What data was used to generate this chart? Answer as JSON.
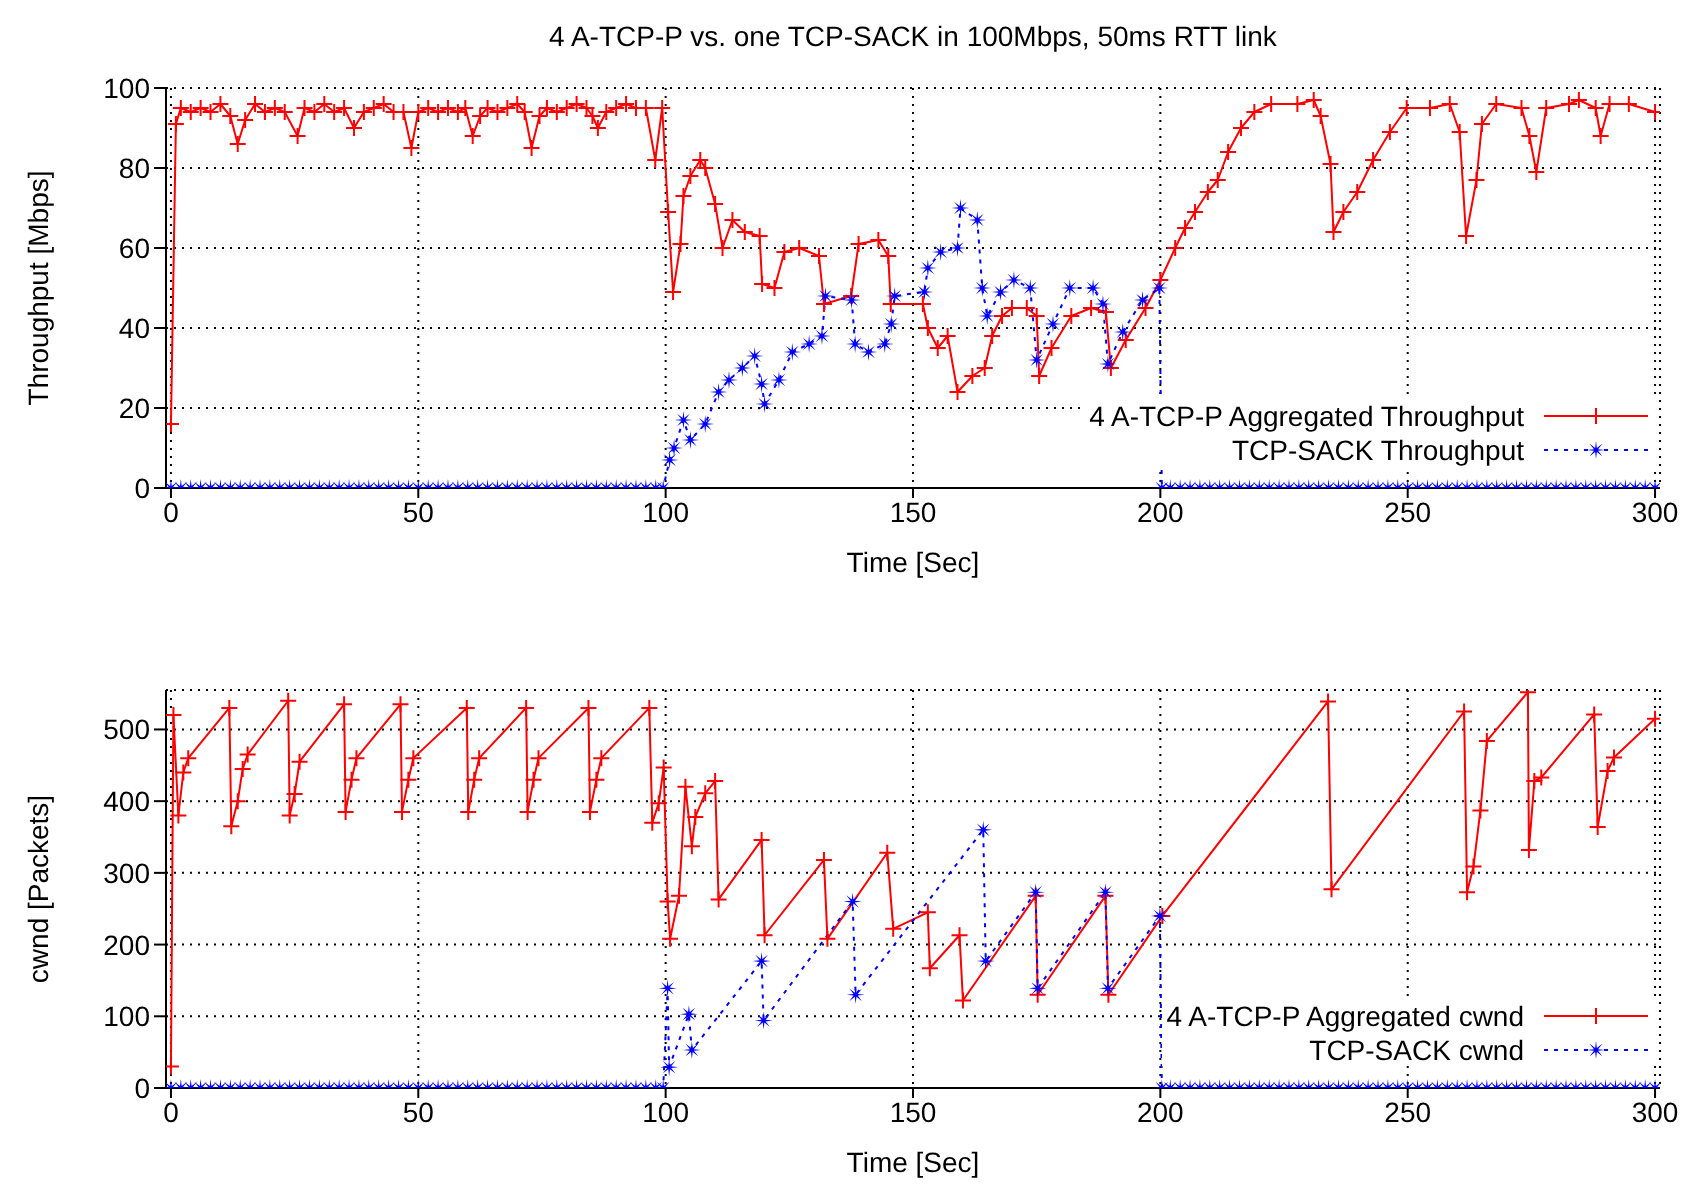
{
  "chart_data": [
    {
      "type": "line",
      "title": "4 A-TCP-P vs. one TCP-SACK in 100Mbps, 50ms RTT link",
      "xlabel": "Time [Sec]",
      "ylabel": "Throughput [Mbps]",
      "xlim": [
        -1,
        301
      ],
      "xticks": [
        0,
        50,
        100,
        150,
        200,
        250,
        300
      ],
      "ylim": [
        0,
        100
      ],
      "yticks": [
        0,
        20,
        40,
        60,
        80,
        100
      ],
      "grid": true,
      "legend": "bottom right",
      "series": [
        {
          "name": "4 A-TCP-P Aggregated Throughput",
          "color": "#ff0000",
          "marker": "cross",
          "line_style": "solid",
          "x": [
            0,
            1,
            2,
            4,
            6,
            8,
            10,
            12,
            13.5,
            15,
            17,
            19,
            21,
            23,
            25.6,
            27,
            29,
            31,
            33,
            35,
            37,
            39,
            41,
            43,
            45,
            47,
            48.6,
            50,
            52,
            54,
            56,
            58,
            59.5,
            61,
            62.5,
            64,
            66,
            68,
            70,
            71.5,
            72.9,
            74.5,
            76,
            78,
            80,
            82,
            84,
            85.2,
            86.3,
            88,
            90,
            92,
            94,
            96,
            97.9,
            99.3,
            100.5,
            101.5,
            103,
            103.6,
            105,
            107,
            108,
            110,
            111.5,
            113.5,
            116,
            119,
            119.5,
            122,
            124,
            127,
            131,
            132,
            137.5,
            139,
            143,
            145,
            145.5,
            152,
            153,
            155,
            157,
            159,
            162,
            164.5,
            166,
            168,
            170,
            173,
            175,
            175.5,
            178,
            182,
            186,
            189,
            190,
            193,
            197,
            200,
            203,
            205,
            207,
            209.6,
            211.6,
            213.7,
            216.3,
            219,
            222.4,
            227.7,
            231,
            232.4,
            234.4,
            235,
            237,
            239.8,
            243,
            246.4,
            249.8,
            254.5,
            258.5,
            260.5,
            261.8,
            263.9,
            265,
            267.9,
            273,
            274.6,
            276,
            278,
            282.6,
            284.6,
            288,
            289,
            290.8,
            294.7,
            300
          ],
          "values": [
            16,
            91,
            95,
            94,
            95,
            94,
            96,
            93,
            86,
            92,
            96,
            94,
            95,
            94,
            88,
            95,
            94,
            96,
            94,
            95,
            90,
            94,
            95,
            96,
            94,
            94,
            85,
            94,
            95,
            94,
            95,
            94,
            95,
            88,
            93,
            95,
            94,
            95,
            96,
            94,
            85,
            93,
            95,
            94,
            95,
            96,
            95,
            93,
            90,
            94,
            95,
            96,
            95,
            95,
            82,
            95,
            69,
            49,
            61,
            73,
            78,
            82,
            80,
            71,
            60,
            67,
            64,
            63,
            51,
            50,
            59,
            60,
            58,
            46,
            48,
            61,
            62,
            58,
            46,
            46,
            40,
            35,
            38,
            24,
            28,
            30,
            38,
            43,
            45,
            45,
            43,
            28,
            35,
            43,
            45,
            44,
            30,
            37,
            45,
            52,
            60,
            65,
            69,
            74,
            77,
            84,
            90,
            94,
            96,
            96,
            97,
            93,
            81,
            64,
            69,
            74,
            82,
            89,
            95,
            95,
            96,
            89,
            63,
            77,
            91,
            96,
            95,
            88,
            79,
            95,
            96,
            97,
            95,
            88,
            96,
            96,
            94
          ]
        },
        {
          "name": "TCP-SACK Throughput",
          "color": "#0000ff",
          "marker": "star",
          "line_style": "dotted",
          "x": [
            0,
            2,
            4,
            6,
            8,
            10,
            12,
            14,
            16,
            18,
            20,
            22,
            24,
            26,
            28,
            30,
            32,
            34,
            36,
            38,
            40,
            42,
            44,
            46,
            48,
            50,
            52,
            54,
            56,
            58,
            60,
            62,
            64,
            66,
            68,
            70,
            72,
            74,
            76,
            78,
            80,
            82,
            84,
            86,
            88,
            90,
            92,
            94,
            96,
            98,
            99.5,
            100.8,
            101.7,
            103.6,
            105,
            108,
            110.7,
            112.8,
            115.5,
            118,
            119.4,
            120,
            122.9,
            125.6,
            129,
            131.6,
            132.3,
            137.6,
            138.3,
            141,
            144.3,
            145.6,
            146.3,
            152.3,
            153,
            155.6,
            159,
            159.6,
            163,
            164,
            165,
            167.7,
            170.4,
            173.7,
            175,
            178.3,
            181.7,
            186.4,
            188.4,
            189.4,
            192.4,
            196.4,
            199.8,
            200.3,
            202,
            204,
            206,
            208,
            210,
            212,
            214,
            216,
            218,
            220,
            222,
            224,
            226,
            228,
            230,
            232,
            234,
            236,
            238,
            240,
            242,
            244,
            246,
            248,
            250,
            252,
            254,
            256,
            258,
            260,
            262,
            264,
            266,
            268,
            270,
            272,
            274,
            276,
            278,
            280,
            282,
            284,
            286,
            288,
            290,
            292,
            294,
            296,
            298,
            300
          ],
          "values": [
            0,
            0,
            0,
            0,
            0,
            0,
            0,
            0,
            0,
            0,
            0,
            0,
            0,
            0,
            0,
            0,
            0,
            0,
            0,
            0,
            0,
            0,
            0,
            0,
            0,
            0,
            0,
            0,
            0,
            0,
            0,
            0,
            0,
            0,
            0,
            0,
            0,
            0,
            0,
            0,
            0,
            0,
            0,
            0,
            0,
            0,
            0,
            0,
            0,
            0,
            0,
            7,
            10,
            17,
            12,
            16,
            24,
            27,
            30,
            33,
            26,
            21,
            27,
            34,
            36,
            38,
            48,
            47,
            36,
            34,
            36,
            41,
            48,
            49,
            55,
            59,
            60,
            70,
            67,
            50,
            43,
            49,
            52,
            50,
            32,
            41,
            50,
            50,
            46,
            31,
            39,
            47,
            50,
            0,
            0,
            0,
            0,
            0,
            0,
            0,
            0,
            0,
            0,
            0,
            0,
            0,
            0,
            0,
            0,
            0,
            0,
            0,
            0,
            0,
            0,
            0,
            0,
            0,
            0,
            0,
            0,
            0,
            0,
            0,
            0,
            0,
            0,
            0,
            0,
            0,
            0,
            0,
            0,
            0,
            0,
            0,
            0,
            0,
            0,
            0,
            0,
            0,
            0,
            0
          ]
        }
      ]
    },
    {
      "type": "line",
      "xlabel": "Time [Sec]",
      "ylabel": "cwnd [Packets]",
      "xlim": [
        -1,
        301
      ],
      "xticks": [
        0,
        50,
        100,
        150,
        200,
        250,
        300
      ],
      "ylim": [
        0,
        555
      ],
      "yticks": [
        0,
        100,
        200,
        300,
        400,
        500
      ],
      "grid": true,
      "legend": "bottom right",
      "series": [
        {
          "name": "4 A-TCP-P Aggregated cwnd",
          "color": "#ff0000",
          "marker": "cross",
          "line_style": "solid",
          "x": [
            0,
            0.5,
            1.5,
            2.5,
            3.5,
            11.8,
            12.2,
            13.5,
            14.5,
            15.5,
            23.7,
            24,
            25,
            26,
            35,
            35.3,
            36.5,
            37.5,
            46.4,
            46.7,
            48,
            49,
            59.8,
            60.1,
            61.3,
            62.3,
            71.8,
            72.1,
            73.3,
            74.3,
            84.4,
            84.7,
            86,
            87,
            96.7,
            97.3,
            98.6,
            99.6,
            100.4,
            100.9,
            102.7,
            104,
            105.3,
            106,
            108,
            110,
            110.7,
            119.4,
            120,
            132,
            132.7,
            144.8,
            146,
            153,
            153.4,
            159.4,
            160.1,
            174.8,
            175.2,
            188.9,
            189.5,
            200.4,
            233.9,
            234.6,
            261.4,
            262,
            263.3,
            264.7,
            266,
            274.3,
            274.5,
            275.6,
            277,
            287.7,
            288.4,
            290.4,
            291.7,
            300
          ],
          "values": [
            30,
            520,
            380,
            440,
            460,
            530,
            365,
            400,
            445,
            465,
            540,
            380,
            410,
            455,
            535,
            385,
            430,
            460,
            535,
            385,
            430,
            460,
            530,
            385,
            430,
            460,
            530,
            385,
            430,
            460,
            530,
            385,
            430,
            460,
            530,
            370,
            397,
            447,
            260,
            208,
            268,
            420,
            337,
            378,
            411,
            428,
            263,
            346,
            213,
            318,
            208,
            328,
            222,
            245,
            167,
            213,
            122,
            268,
            130,
            268,
            130,
            240,
            539,
            277,
            525,
            273,
            309,
            387,
            484,
            552,
            332,
            428,
            433,
            521,
            364,
            442,
            461,
            515
          ]
        },
        {
          "name": "TCP-SACK cwnd",
          "color": "#0000ff",
          "marker": "star",
          "line_style": "dotted",
          "x": [
            0,
            2,
            4,
            6,
            8,
            10,
            12,
            14,
            16,
            18,
            20,
            22,
            24,
            26,
            28,
            30,
            32,
            34,
            36,
            38,
            40,
            42,
            44,
            46,
            48,
            50,
            52,
            54,
            56,
            58,
            60,
            62,
            64,
            66,
            68,
            70,
            72,
            74,
            76,
            78,
            80,
            82,
            84,
            86,
            88,
            90,
            92,
            94,
            96,
            98,
            99.5,
            100.4,
            100.7,
            104.7,
            105.3,
            119.4,
            119.8,
            137.8,
            138.4,
            164.2,
            164.7,
            174.8,
            175.2,
            188.9,
            189.4,
            199.9,
            200.3,
            202,
            204,
            206,
            208,
            210,
            212,
            214,
            216,
            218,
            220,
            222,
            224,
            226,
            228,
            230,
            232,
            234,
            236,
            238,
            240,
            242,
            244,
            246,
            248,
            250,
            252,
            254,
            256,
            258,
            260,
            262,
            264,
            266,
            268,
            270,
            272,
            274,
            276,
            278,
            280,
            282,
            284,
            286,
            288,
            290,
            292,
            294,
            296,
            298,
            300
          ],
          "values": [
            0,
            0,
            0,
            0,
            0,
            0,
            0,
            0,
            0,
            0,
            0,
            0,
            0,
            0,
            0,
            0,
            0,
            0,
            0,
            0,
            0,
            0,
            0,
            0,
            0,
            0,
            0,
            0,
            0,
            0,
            0,
            0,
            0,
            0,
            0,
            0,
            0,
            0,
            0,
            0,
            0,
            0,
            0,
            0,
            0,
            0,
            0,
            0,
            0,
            0,
            0,
            139,
            29,
            103,
            53,
            177,
            94,
            260,
            130,
            360,
            177,
            273,
            139,
            273,
            139,
            240,
            0,
            0,
            0,
            0,
            0,
            0,
            0,
            0,
            0,
            0,
            0,
            0,
            0,
            0,
            0,
            0,
            0,
            0,
            0,
            0,
            0,
            0,
            0,
            0,
            0,
            0,
            0,
            0,
            0,
            0,
            0,
            0,
            0,
            0,
            0,
            0,
            0,
            0,
            0,
            0,
            0,
            0,
            0,
            0,
            0,
            0,
            0,
            0,
            0,
            0,
            0
          ]
        }
      ]
    }
  ]
}
